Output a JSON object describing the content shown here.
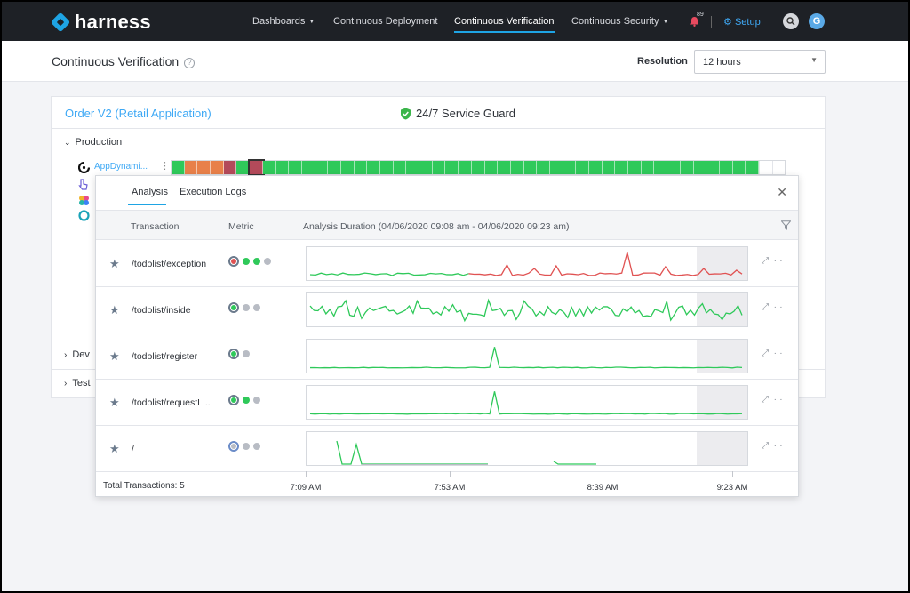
{
  "brand": "harness",
  "nav": [
    {
      "label": "Dashboards",
      "dropdown": true,
      "active": false
    },
    {
      "label": "Continuous Deployment",
      "dropdown": false,
      "active": false
    },
    {
      "label": "Continuous Verification",
      "dropdown": false,
      "active": true
    },
    {
      "label": "Continuous Security",
      "dropdown": true,
      "active": false
    }
  ],
  "notification_count": "89",
  "setup_label": "Setup",
  "user_initial": "G",
  "page": {
    "title": "Continuous Verification",
    "help": "?"
  },
  "resolution": {
    "label": "Resolution",
    "value": "12 hours"
  },
  "card": {
    "service_title": "Order V2 (Retail Application)",
    "service_guard_label": "24/7 Service Guard",
    "environments": [
      {
        "label": "Production",
        "expanded": true
      },
      {
        "label": "Dev",
        "expanded": false
      },
      {
        "label": "Test",
        "expanded": false
      }
    ],
    "app_name": "AppDynami...",
    "heatmap": [
      "ok",
      "risk-med",
      "risk-med",
      "risk-med",
      "risk-high",
      "ok",
      "risk-high-selected",
      "ok",
      "ok",
      "ok",
      "ok",
      "ok",
      "ok",
      "ok",
      "ok",
      "ok",
      "ok",
      "ok",
      "ok",
      "ok",
      "ok",
      "ok",
      "ok",
      "ok",
      "ok",
      "ok",
      "ok",
      "ok",
      "ok",
      "ok",
      "ok",
      "ok",
      "ok",
      "ok",
      "ok",
      "ok",
      "ok",
      "ok",
      "ok",
      "ok",
      "ok",
      "ok",
      "ok",
      "ok",
      "ok",
      "empty",
      "empty"
    ]
  },
  "popover": {
    "tabs": [
      "Analysis",
      "Execution Logs"
    ],
    "active_tab": "Analysis",
    "columns": {
      "transaction": "Transaction",
      "metric": "Metric",
      "duration": "Analysis Duration (04/06/2020 09:08 am - 04/06/2020 09:23 am)"
    },
    "rows": [
      {
        "name": "/todolist/exception",
        "dots": [
          "red-ring",
          "green",
          "green",
          "grey"
        ],
        "color": "#e05252"
      },
      {
        "name": "/todolist/inside",
        "dots": [
          "green-ring",
          "grey",
          "grey"
        ],
        "color": "#2fc95a"
      },
      {
        "name": "/todolist/register",
        "dots": [
          "green-ring",
          "grey"
        ],
        "color": "#2fc95a"
      },
      {
        "name": "/todolist/requestL...",
        "dots": [
          "green-ring",
          "green",
          "grey"
        ],
        "color": "#2fc95a"
      },
      {
        "name": "/",
        "dots": [
          "grey-ring",
          "grey",
          "grey"
        ],
        "color": "#2fc95a"
      }
    ],
    "total_label": "Total Transactions: 5",
    "ticks": [
      "7:09 AM",
      "7:53 AM",
      "8:39 AM",
      "9:23 AM"
    ]
  },
  "colors": {
    "ok": "#2fc95a",
    "risk-med": "#e8804a",
    "risk-high": "#b34a5a",
    "empty": "#ffffff",
    "accent": "#1ea4e4"
  }
}
